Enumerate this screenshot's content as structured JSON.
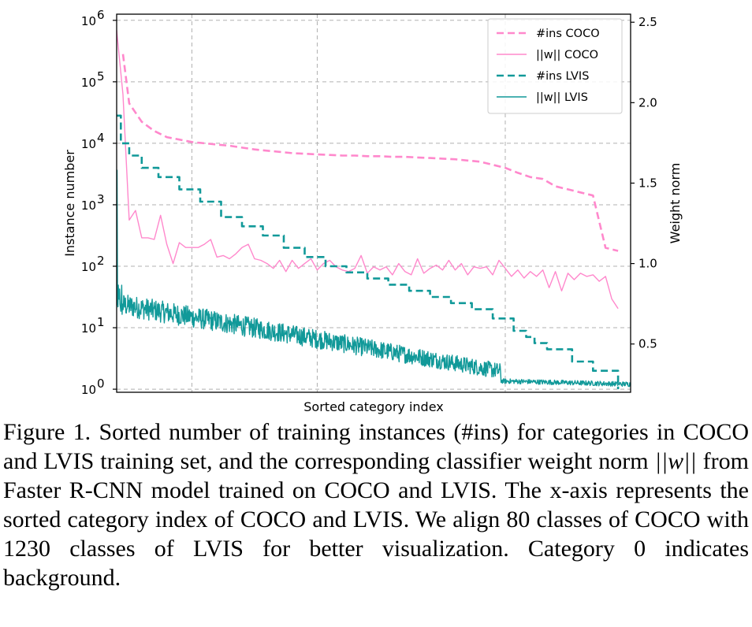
{
  "chart_data": {
    "type": "line",
    "title": "",
    "xlabel": "Sorted category index",
    "ylabel_left": "Instance number",
    "ylabel_right": "Weight norm",
    "x_range": [
      0,
      1230
    ],
    "y_left_scale": "log",
    "y_left_range_exp": [
      -0.05,
      6.1
    ],
    "y_left_ticks": [
      {
        "exp": 0,
        "base": "10",
        "sup": "0"
      },
      {
        "exp": 1,
        "base": "10",
        "sup": "1"
      },
      {
        "exp": 2,
        "base": "10",
        "sup": "2"
      },
      {
        "exp": 3,
        "base": "10",
        "sup": "3"
      },
      {
        "exp": 4,
        "base": "10",
        "sup": "4"
      },
      {
        "exp": 5,
        "base": "10",
        "sup": "5"
      },
      {
        "exp": 6,
        "base": "10",
        "sup": "6"
      }
    ],
    "y_right_range": [
      0.2,
      2.55
    ],
    "y_right_ticks": [
      {
        "v": 0.5,
        "label": "0.5"
      },
      {
        "v": 1.0,
        "label": "1.0"
      },
      {
        "v": 1.5,
        "label": "1.5"
      },
      {
        "v": 2.0,
        "label": "2.0"
      },
      {
        "v": 2.5,
        "label": "2.5"
      }
    ],
    "x_gridlines": [
      180,
      480,
      930
    ],
    "grid": true,
    "legend_position": "top-right",
    "series": [
      {
        "name": "#ins COCO",
        "axis": "left",
        "style": "dashed",
        "color": "#ff88cc",
        "x": [
          15,
          30,
          60,
          90,
          120,
          150,
          180,
          210,
          240,
          270,
          300,
          330,
          360,
          390,
          420,
          450,
          480,
          510,
          540,
          570,
          600,
          630,
          660,
          690,
          720,
          750,
          780,
          810,
          840,
          870,
          900,
          930,
          960,
          990,
          1020,
          1050,
          1080,
          1110,
          1140,
          1170,
          1200
        ],
        "log10": [
          5.45,
          4.65,
          4.35,
          4.2,
          4.1,
          4.06,
          4.02,
          4.0,
          3.98,
          3.96,
          3.93,
          3.9,
          3.88,
          3.86,
          3.84,
          3.83,
          3.82,
          3.81,
          3.8,
          3.8,
          3.79,
          3.79,
          3.78,
          3.78,
          3.77,
          3.76,
          3.75,
          3.74,
          3.72,
          3.7,
          3.65,
          3.6,
          3.52,
          3.45,
          3.42,
          3.3,
          3.25,
          3.2,
          3.15,
          2.3,
          2.25
        ]
      },
      {
        "name": "||w|| COCO",
        "axis": "right",
        "style": "solid",
        "color": "#ff88cc",
        "x": [
          0,
          15,
          30,
          45,
          60,
          75,
          90,
          105,
          120,
          135,
          150,
          165,
          180,
          195,
          210,
          225,
          240,
          255,
          270,
          285,
          300,
          315,
          330,
          345,
          360,
          375,
          390,
          405,
          420,
          435,
          450,
          465,
          480,
          495,
          510,
          525,
          540,
          555,
          570,
          585,
          600,
          615,
          630,
          645,
          660,
          675,
          690,
          705,
          720,
          735,
          750,
          765,
          780,
          795,
          810,
          825,
          840,
          855,
          870,
          885,
          900,
          915,
          930,
          945,
          960,
          975,
          990,
          1005,
          1020,
          1035,
          1050,
          1065,
          1080,
          1095,
          1110,
          1125,
          1140,
          1155,
          1170,
          1185,
          1200
        ],
        "values": [
          2.45,
          2.05,
          1.27,
          1.33,
          1.16,
          1.16,
          1.15,
          1.3,
          1.12,
          1.0,
          1.13,
          1.1,
          1.1,
          1.1,
          1.12,
          1.15,
          1.04,
          1.05,
          1.03,
          1.06,
          1.1,
          1.12,
          1.03,
          1.02,
          1.0,
          0.97,
          1.02,
          0.95,
          1.02,
          0.97,
          1.0,
          1.03,
          0.96,
          1.0,
          1.02,
          0.98,
          0.96,
          0.95,
          0.97,
          1.05,
          0.94,
          0.98,
          0.96,
          0.98,
          0.93,
          1.0,
          0.95,
          0.93,
          1.03,
          0.94,
          0.97,
          0.99,
          0.96,
          1.02,
          0.96,
          1.0,
          0.93,
          0.98,
          0.97,
          0.98,
          0.93,
          1.02,
          0.97,
          0.92,
          0.96,
          0.91,
          0.95,
          0.92,
          0.96,
          0.85,
          0.95,
          0.83,
          0.94,
          0.9,
          0.94,
          0.92,
          0.93,
          0.89,
          0.92,
          0.78,
          0.72
        ]
      },
      {
        "name": "#ins LVIS",
        "axis": "left",
        "style": "dashed",
        "color": "#119999",
        "x": [
          0,
          10,
          30,
          60,
          100,
          150,
          200,
          250,
          300,
          350,
          400,
          450,
          500,
          550,
          600,
          650,
          700,
          750,
          800,
          850,
          900,
          950,
          980,
          1000,
          1030,
          1060,
          1090,
          1120,
          1140,
          1170,
          1200
        ],
        "log10": [
          4.45,
          4.0,
          3.8,
          3.6,
          3.45,
          3.25,
          3.05,
          2.8,
          2.65,
          2.5,
          2.3,
          2.15,
          2.0,
          1.9,
          1.8,
          1.7,
          1.6,
          1.5,
          1.4,
          1.3,
          1.15,
          0.95,
          0.85,
          0.75,
          0.65,
          0.65,
          0.45,
          0.45,
          0.3,
          0.3,
          0.0
        ]
      },
      {
        "name": "||w|| LVIS",
        "axis": "right",
        "style": "solid",
        "color": "#119999",
        "x_range": [
          0,
          1230
        ],
        "spike": 1.58,
        "start_value": 0.75,
        "end_value": 0.25,
        "flatten_from": 920
      }
    ]
  },
  "caption": {
    "part1": "Figure 1. Sorted number of training instances (#ins) for categories in COCO and LVIS training set, and the corresponding classifier weight norm ",
    "math": "||w||",
    "part2": " from Faster R-CNN model trained on COCO and LVIS. The x-axis represents the sorted category index of COCO and LVIS. We align 80 classes of COCO with 1230 classes of LVIS for better visualization. Category 0 indicates background."
  }
}
